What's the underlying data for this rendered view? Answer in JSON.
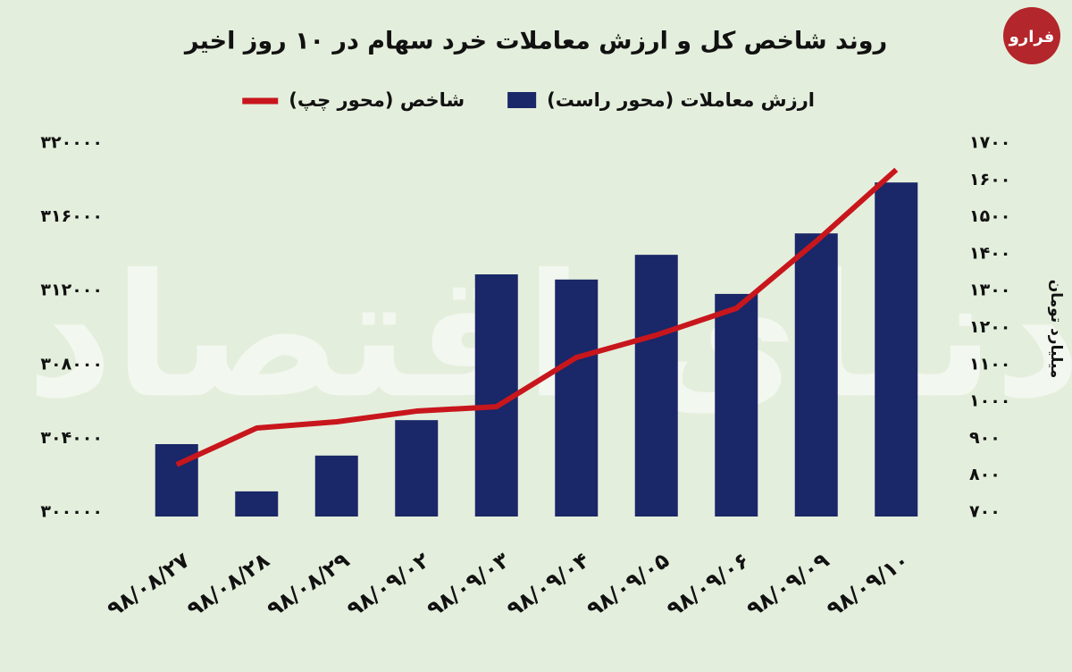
{
  "chart_data": {
    "type": "bar",
    "title": "روند شاخص کل و ارزش معاملات خرد سهام در ۱۰ روز اخیر",
    "logo": "فرارو",
    "watermark": "دنیای اقتصاد",
    "y2label": "میلیارد تومان",
    "categories": [
      "۹۸/۰۸/۲۷",
      "۹۸/۰۸/۲۸",
      "۹۸/۰۸/۲۹",
      "۹۸/۰۹/۰۲",
      "۹۸/۰۹/۰۳",
      "۹۸/۰۹/۰۴",
      "۹۸/۰۹/۰۵",
      "۹۸/۰۹/۰۶",
      "۹۸/۰۹/۰۹",
      "۹۸/۰۹/۱۰"
    ],
    "series": [
      {
        "name": "ارزش معاملات (محور راست)",
        "type": "bar",
        "axis": "y2",
        "color": "#1a2768",
        "values": [
          884,
          756,
          853,
          949,
          1344,
          1330,
          1397,
          1291,
          1455,
          1593
        ]
      },
      {
        "name": "شاخص (محور چپ)",
        "type": "line",
        "color": "#c8161d",
        "values": [
          302570,
          304550,
          304890,
          305470,
          305710,
          308380,
          309590,
          311040,
          314670,
          318550
        ]
      }
    ],
    "ylim": [
      300000,
      320000
    ],
    "yticks": [
      {
        "value": 300000,
        "label": "۳۰۰۰۰۰"
      },
      {
        "value": 304000,
        "label": "۳۰۴۰۰۰"
      },
      {
        "value": 308000,
        "label": "۳۰۸۰۰۰"
      },
      {
        "value": 312000,
        "label": "۳۱۲۰۰۰"
      },
      {
        "value": 316000,
        "label": "۳۱۶۰۰۰"
      },
      {
        "value": 320000,
        "label": "۳۲۰۰۰۰"
      }
    ],
    "y2lim": [
      700,
      1700
    ],
    "y2ticks": [
      {
        "value": 700,
        "label": "۷۰۰"
      },
      {
        "value": 800,
        "label": "۸۰۰"
      },
      {
        "value": 900,
        "label": "۹۰۰"
      },
      {
        "value": 1000,
        "label": "۱۰۰۰"
      },
      {
        "value": 1100,
        "label": "۱۱۰۰"
      },
      {
        "value": 1200,
        "label": "۱۲۰۰"
      },
      {
        "value": 1300,
        "label": "۱۳۰۰"
      },
      {
        "value": 1400,
        "label": "۱۴۰۰"
      },
      {
        "value": 1500,
        "label": "۱۵۰۰"
      },
      {
        "value": 1600,
        "label": "۱۶۰۰"
      },
      {
        "value": 1700,
        "label": "۱۷۰۰"
      }
    ],
    "grid": false
  }
}
